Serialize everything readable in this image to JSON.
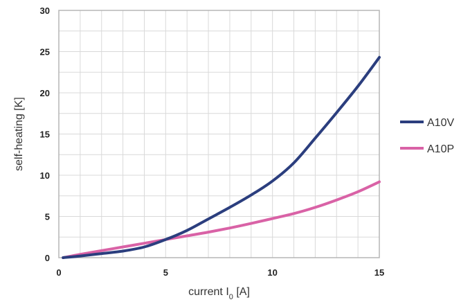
{
  "chart_data": {
    "type": "line",
    "xlabel": {
      "prefix": "current I",
      "subscript": "0",
      "suffix": " [A]"
    },
    "ylabel": "self-heating [K]",
    "xlim": [
      0,
      15
    ],
    "ylim": [
      0,
      30
    ],
    "xticks": [
      0,
      5,
      10,
      15
    ],
    "yticks": [
      0,
      5,
      10,
      15,
      20,
      25,
      30
    ],
    "grid": true,
    "legend_position": "right",
    "series": [
      {
        "name": "A10V",
        "color": "#2b3e7e",
        "x": [
          0.2,
          1,
          2,
          3,
          4,
          5,
          6,
          7,
          8,
          9,
          10,
          11,
          12,
          13,
          14,
          15
        ],
        "y": [
          0,
          0.2,
          0.5,
          0.8,
          1.3,
          2.2,
          3.3,
          4.7,
          6.1,
          7.6,
          9.3,
          11.5,
          14.5,
          17.6,
          20.8,
          24.3
        ]
      },
      {
        "name": "A10P",
        "color": "#d962a6",
        "x": [
          0.2,
          1,
          2,
          3,
          4,
          5,
          6,
          7,
          8,
          9,
          10,
          11,
          12,
          13,
          14,
          15
        ],
        "y": [
          0,
          0.4,
          0.85,
          1.3,
          1.75,
          2.2,
          2.65,
          3.1,
          3.6,
          4.15,
          4.75,
          5.35,
          6.1,
          7.0,
          8.0,
          9.2
        ]
      }
    ]
  }
}
